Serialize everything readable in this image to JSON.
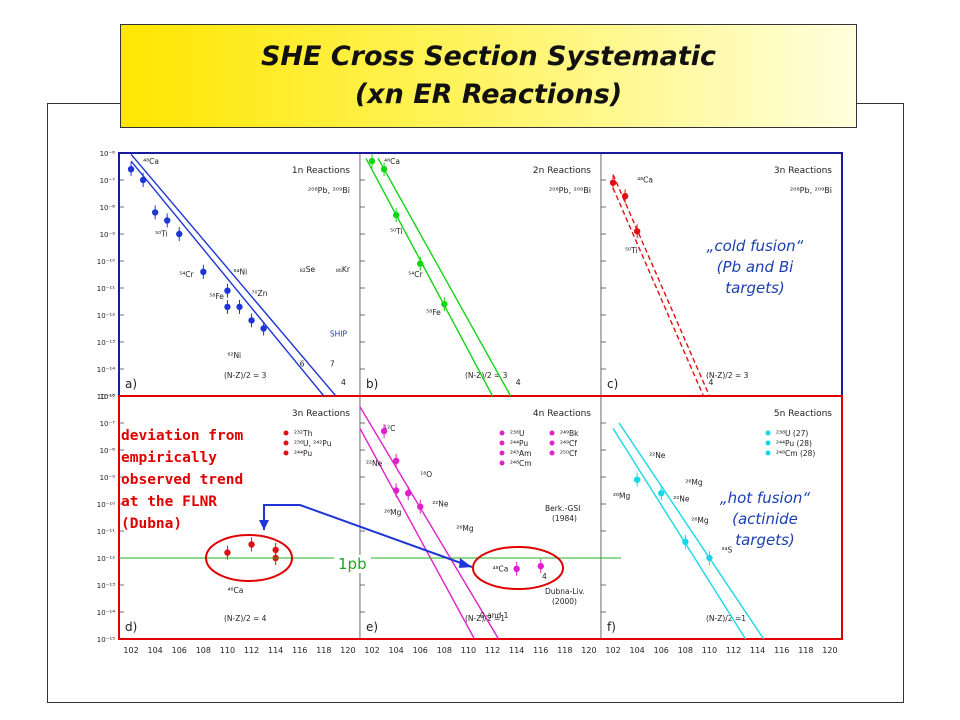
{
  "title": {
    "line1": "SHE Cross Section Systematic",
    "line2": "(xn ER Reactions)"
  },
  "annotations": {
    "cold_fusion": [
      "„cold fusion“",
      "(Pb and Bi",
      "targets)"
    ],
    "hot_fusion": [
      "„hot fusion“",
      "(actinide",
      "targets)"
    ],
    "deviation": [
      "deviation from",
      "empirically",
      "observed trend",
      "at the FLNR",
      "(Dubna)"
    ],
    "pb_label": "1pb"
  },
  "colors": {
    "blue": "#1f35d6",
    "green": "#14d414",
    "red": "#e01010",
    "magenta": "#e020c8",
    "cyan": "#18d8e8",
    "pb_line": "#22b022",
    "dark_blue_frame": "#1a1aa0",
    "red_frame": "#e00000",
    "arrow": "#1f35d6"
  },
  "chart_data": {
    "type": "scatter",
    "y_axis": {
      "scale": "log",
      "range": [
        1e-15,
        1e-06
      ],
      "tick_labels": [
        "10⁻⁶",
        "10⁻⁷",
        "10⁻⁸",
        "10⁻⁹",
        "10⁻¹⁰",
        "10⁻¹¹",
        "10⁻¹²",
        "10⁻¹³",
        "10⁻¹⁴",
        "10⁻¹⁵"
      ]
    },
    "x_axis": {
      "range": [
        101,
        121
      ],
      "tick_labels": [
        "102",
        "104",
        "106",
        "108",
        "110",
        "112",
        "114",
        "116",
        "118",
        "120"
      ]
    },
    "reference_line": {
      "value": 1e-12,
      "label": "1pb"
    },
    "panels": [
      {
        "panel": "a)",
        "title": "1n Reactions",
        "color": "blue",
        "legend": "²⁰⁸Pb, ²⁰⁹Bi",
        "bottom_label": "(N-Z)/2 = 3",
        "lines": [
          {
            "from": [
              102,
              -6.3
            ],
            "to": [
              118,
              -15
            ],
            "label": ""
          },
          {
            "from": [
              102,
              -6.05
            ],
            "to": [
              119,
              -15
            ],
            "label": "4"
          }
        ],
        "points": [
          {
            "x": 102,
            "y": -6.6
          },
          {
            "x": 103,
            "y": -7.0
          },
          {
            "x": 104,
            "y": -8.2
          },
          {
            "x": 105,
            "y": -8.5
          },
          {
            "x": 106,
            "y": -9.0
          },
          {
            "x": 108,
            "y": -10.4
          },
          {
            "x": 110,
            "y": -11.1
          },
          {
            "x": 110,
            "y": -11.7
          },
          {
            "x": 111,
            "y": -11.7
          },
          {
            "x": 112,
            "y": -12.2
          },
          {
            "x": 113,
            "y": -12.5
          }
        ],
        "labels": [
          {
            "text": "⁴⁸Ca",
            "x": 103,
            "y": -6.4
          },
          {
            "text": "⁵⁰Ti",
            "x": 104,
            "y": -9.1
          },
          {
            "text": "⁵⁴Cr",
            "x": 106,
            "y": -10.6
          },
          {
            "text": "⁵⁸Fe",
            "x": 108.5,
            "y": -11.4
          },
          {
            "text": "⁶⁴Ni",
            "x": 110.5,
            "y": -10.5
          },
          {
            "text": "⁷⁰Zn",
            "x": 112,
            "y": -11.3
          },
          {
            "text": "₈₂Se",
            "x": 116,
            "y": -10.4
          },
          {
            "text": "₈₆Kr",
            "x": 119,
            "y": -10.4
          },
          {
            "text": "⁶²Ni",
            "x": 110,
            "y": -13.6
          },
          {
            "text": "SHIP",
            "x": 118.5,
            "y": -12.8
          },
          {
            "text": "6",
            "x": 116,
            "y": -13.9
          },
          {
            "text": "7",
            "x": 118.5,
            "y": -13.9
          }
        ]
      },
      {
        "panel": "b)",
        "title": "2n Reactions",
        "color": "green",
        "legend": "²⁰⁸Pb, ²⁰⁹Bi",
        "bottom_label": "(N-Z)/2 = 3",
        "lines": [
          {
            "from": [
              101.5,
              -6.2
            ],
            "to": [
              112,
              -15
            ],
            "label": ""
          },
          {
            "from": [
              102.5,
              -6.2
            ],
            "to": [
              113.5,
              -15
            ],
            "label": "4"
          }
        ],
        "points": [
          {
            "x": 102,
            "y": -6.3
          },
          {
            "x": 103,
            "y": -6.6
          },
          {
            "x": 104,
            "y": -8.3
          },
          {
            "x": 106,
            "y": -10.1
          },
          {
            "x": 108,
            "y": -11.6
          }
        ],
        "labels": [
          {
            "text": "⁴⁸Ca",
            "x": 103,
            "y": -6.4
          },
          {
            "text": "⁵⁰Ti",
            "x": 103.5,
            "y": -9.0
          },
          {
            "text": "⁵⁴Cr",
            "x": 105,
            "y": -10.6
          },
          {
            "text": "⁵⁸Fe",
            "x": 106.5,
            "y": -12.0
          }
        ]
      },
      {
        "panel": "c)",
        "title": "3n Reactions",
        "color": "red",
        "dashed": true,
        "legend": "²⁰⁸Pb, ²⁰⁹Bi",
        "bottom_label": "(N-Z)/2 = 3",
        "lines": [
          {
            "from": [
              102,
              -6.8
            ],
            "to": [
              110,
              -15
            ],
            "label": ""
          },
          {
            "from": [
              102,
              -7.3
            ],
            "to": [
              109.5,
              -15
            ],
            "label": "4"
          }
        ],
        "points": [
          {
            "x": 102,
            "y": -7.1
          },
          {
            "x": 103,
            "y": -7.6
          },
          {
            "x": 104,
            "y": -8.9
          }
        ],
        "labels": [
          {
            "text": "⁴⁸Ca",
            "x": 104,
            "y": -7.1
          },
          {
            "text": "⁵⁰Ti",
            "x": 103,
            "y": -9.7
          }
        ]
      },
      {
        "panel": "d)",
        "title": "3n Reactions",
        "color": "red",
        "legend_items": [
          "²³²Th",
          "²³⁸U, ²⁴²Pu",
          "²⁴⁴Pu"
        ],
        "bottom_label": "(N-Z)/2 = 4",
        "lines": [],
        "points": [
          {
            "x": 110,
            "y": -11.8
          },
          {
            "x": 112,
            "y": -11.5
          },
          {
            "x": 114,
            "y": -11.7
          },
          {
            "x": 114,
            "y": -12.0
          }
        ],
        "labels": [
          {
            "text": "⁴⁸Ca",
            "x": 110,
            "y": -13.3
          }
        ]
      },
      {
        "panel": "e)",
        "title": "4n Reactions",
        "color": "magenta",
        "legend_items": [
          "²³⁸U",
          "²⁴⁴Pu",
          "²⁴³Am",
          "²⁴⁸Cm",
          "²⁴⁹Bk",
          "²⁴⁹Cf",
          "²⁵⁰Cf"
        ],
        "bottom_label": "(N-Z)/2 =1",
        "extra_labels": [
          "Berk.-GSI",
          "(1984)",
          "Dubna-Liv.",
          "(2000)",
          "0 and 1",
          "4"
        ],
        "lines": [
          {
            "from": [
              101,
              -7.2
            ],
            "to": [
              110.5,
              -15
            ],
            "label": ""
          },
          {
            "from": [
              101,
              -6.4
            ],
            "to": [
              112.5,
              -15
            ],
            "label": ""
          }
        ],
        "points": [
          {
            "x": 103,
            "y": -7.3
          },
          {
            "x": 104,
            "y": -8.4
          },
          {
            "x": 104,
            "y": -9.5
          },
          {
            "x": 105,
            "y": -9.6
          },
          {
            "x": 106,
            "y": -10.1
          },
          {
            "x": 114,
            "y": -12.4
          },
          {
            "x": 116,
            "y": -12.3
          }
        ],
        "labels": [
          {
            "text": "¹²C",
            "x": 103,
            "y": -7.3
          },
          {
            "text": "²²Ne",
            "x": 101.5,
            "y": -8.6
          },
          {
            "text": "¹⁸O",
            "x": 106,
            "y": -9.0
          },
          {
            "text": "²⁶Mg",
            "x": 103,
            "y": -10.4
          },
          {
            "text": "²²Ne",
            "x": 107,
            "y": -10.1
          },
          {
            "text": "²⁶Mg",
            "x": 109,
            "y": -11.0
          },
          {
            "text": "⁴⁸Ca",
            "x": 112,
            "y": -12.5
          }
        ]
      },
      {
        "panel": "f)",
        "title": "5n Reactions",
        "color": "cyan",
        "legend_items": [
          "²³⁸U (27)",
          "²⁴⁴Pu (28)",
          "²⁴⁸Cm (28)"
        ],
        "bottom_label": "(N-Z)/2 =1",
        "lines": [
          {
            "from": [
              102,
              -7.2
            ],
            "to": [
              113,
              -15
            ],
            "label": ""
          },
          {
            "from": [
              102.5,
              -7.0
            ],
            "to": [
              114.5,
              -15
            ],
            "label": ""
          }
        ],
        "points": [
          {
            "x": 104,
            "y": -9.1
          },
          {
            "x": 106,
            "y": -9.6
          },
          {
            "x": 108,
            "y": -11.4
          },
          {
            "x": 110,
            "y": -12.0
          }
        ],
        "labels": [
          {
            "text": "²²Ne",
            "x": 105,
            "y": -8.3
          },
          {
            "text": "²⁶Mg",
            "x": 102,
            "y": -9.8
          },
          {
            "text": "²⁶Mg",
            "x": 108,
            "y": -9.3
          },
          {
            "text": "²²Ne",
            "x": 107,
            "y": -9.9
          },
          {
            "text": "²⁶Mg",
            "x": 108.5,
            "y": -10.7
          },
          {
            "text": "³⁴S",
            "x": 111,
            "y": -11.8
          }
        ]
      }
    ]
  }
}
